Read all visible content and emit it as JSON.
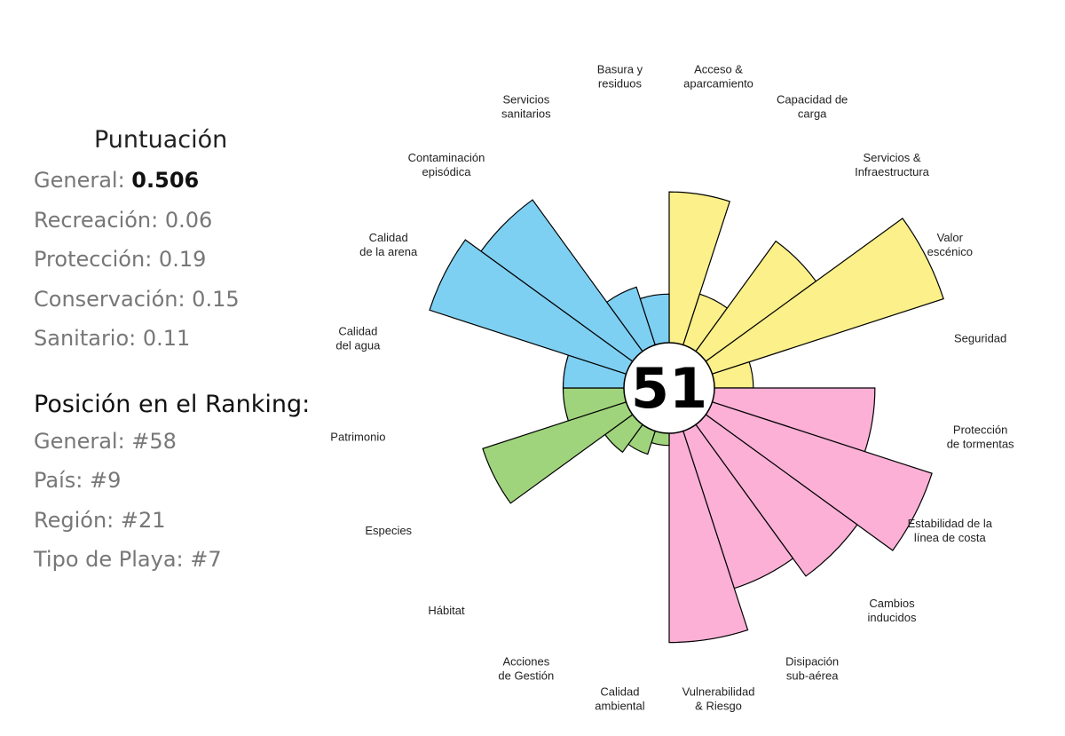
{
  "panel": {
    "score_title": "Puntuación",
    "scores": [
      {
        "label": "General: ",
        "value": "0.506",
        "bold": true
      },
      {
        "label": "Recreación: ",
        "value": "0.06",
        "bold": false
      },
      {
        "label": "Protección: ",
        "value": "0.19",
        "bold": false
      },
      {
        "label": "Conservación: ",
        "value": "0.15",
        "bold": false
      },
      {
        "label": "Sanitario: ",
        "value": "0.11",
        "bold": false
      }
    ],
    "ranking_title": "Posición en el Ranking:",
    "rankings": [
      {
        "label": "General: ",
        "value": "#58"
      },
      {
        "label": "País: ",
        "value": "#9"
      },
      {
        "label": "Región: ",
        "value": "#21"
      },
      {
        "label": "Tipo de Playa: ",
        "value": "#7"
      }
    ]
  },
  "chart_data": {
    "type": "polar-bar",
    "center_value": "51",
    "scale_max": 1.0,
    "groups": [
      {
        "name": "Recreación",
        "color": "#fbf089"
      },
      {
        "name": "Protección",
        "color": "#fcb0d6"
      },
      {
        "name": "Conservación",
        "color": "#9fd47c"
      },
      {
        "name": "Sanitario",
        "color": "#7ed0f2"
      }
    ],
    "categories": [
      {
        "label": [
          "Acceso &",
          "aparcamiento"
        ],
        "group": 0,
        "value": 0.62
      },
      {
        "label": [
          "Capacidad de",
          "carga"
        ],
        "group": 0,
        "value": 0.22
      },
      {
        "label": [
          "Servicios &",
          "Infraestructura"
        ],
        "group": 0,
        "value": 0.56
      },
      {
        "label": [
          "Valor",
          "escénico"
        ],
        "group": 0,
        "value": 1.0
      },
      {
        "label": [
          "Seguridad"
        ],
        "group": 0,
        "value": 0.16
      },
      {
        "label": [
          "Protección",
          "de tormentas"
        ],
        "group": 1,
        "value": 0.66
      },
      {
        "label": [
          "Estabilidad de la",
          "línea de costa"
        ],
        "group": 1,
        "value": 0.95
      },
      {
        "label": [
          "Cambios",
          "inducidos"
        ],
        "group": 1,
        "value": 0.77
      },
      {
        "label": [
          "Disipación",
          "sub-aérea"
        ],
        "group": 1,
        "value": 0.68
      },
      {
        "label": [
          "Vulnerabilidad",
          "& Riesgo"
        ],
        "group": 1,
        "value": 0.86
      },
      {
        "label": [
          "Calidad",
          "ambiental"
        ],
        "group": 2,
        "value": 0.05
      },
      {
        "label": [
          "Acciones",
          "de Gestión"
        ],
        "group": 2,
        "value": 0.1
      },
      {
        "label": [
          "Hábitat"
        ],
        "group": 2,
        "value": 0.14
      },
      {
        "label": [
          "Especies"
        ],
        "group": 2,
        "value": 0.62
      },
      {
        "label": [
          "Patrimonio"
        ],
        "group": 2,
        "value": 0.25
      },
      {
        "label": [
          "Calidad",
          "del agua"
        ],
        "group": 3,
        "value": 0.25
      },
      {
        "label": [
          "Calidad",
          "de la arena"
        ],
        "group": 3,
        "value": 0.85
      },
      {
        "label": [
          "Contaminación",
          "episódica"
        ],
        "group": 3,
        "value": 0.77
      },
      {
        "label": [
          "Servicios",
          "sanitarios"
        ],
        "group": 3,
        "value": 0.25
      },
      {
        "label": [
          "Basura y",
          "residuos"
        ],
        "group": 3,
        "value": 0.2
      }
    ]
  }
}
